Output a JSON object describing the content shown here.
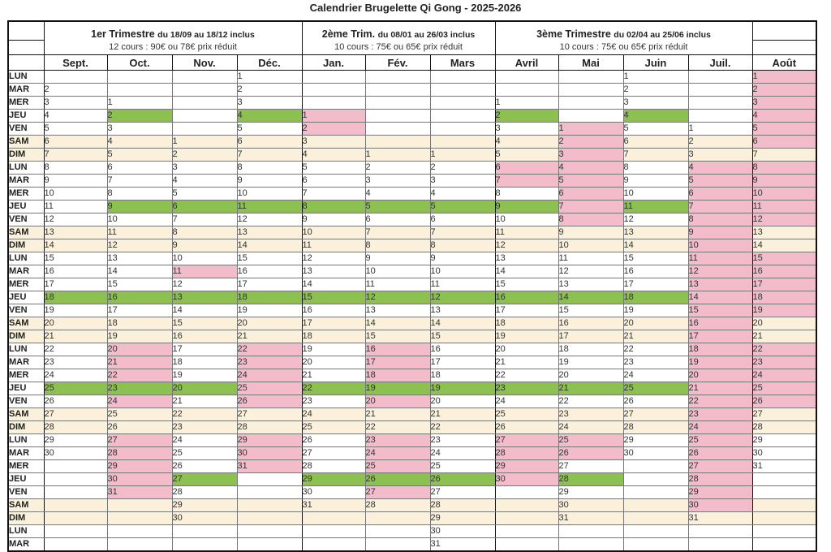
{
  "title": "Calendrier Brugelette Qi Gong - 2025-2026",
  "trimesters": [
    {
      "name": "1er Trimestre",
      "range": "du 18/09 au 18/12 inclus",
      "price": "12 cours : 90€ ou 78€ prix réduit"
    },
    {
      "name": "2ème Trim.",
      "range": "du 08/01 au 26/03 inclus",
      "price": "10 cours : 75€ ou 65€ prix réduit"
    },
    {
      "name": "3ème Trimestre",
      "range": "du 02/04 au 25/06 inclus",
      "price": "10 cours : 75€ ou 65€ prix réduit"
    }
  ],
  "months": [
    "Sept.",
    "Oct.",
    "Nov.",
    "Déc.",
    "Jan.",
    "Fév.",
    "Mars",
    "Avril",
    "Mai",
    "Juin",
    "Juil.",
    "Août"
  ],
  "rows": [
    {
      "day": "LUN",
      "cells": [
        "",
        "",
        "",
        "1",
        "",
        "",
        "",
        "",
        "",
        "1",
        "",
        "1"
      ]
    },
    {
      "day": "MAR",
      "cells": [
        "2",
        "",
        "",
        "2",
        "",
        "",
        "",
        "",
        "",
        "2",
        "",
        "2"
      ]
    },
    {
      "day": "MER",
      "cells": [
        "3",
        "1",
        "",
        "3",
        "",
        "",
        "",
        "1",
        "",
        "3",
        "",
        "3"
      ]
    },
    {
      "day": "JEU",
      "cells": [
        "4",
        "2",
        "",
        "4",
        "1",
        "",
        "",
        "2",
        "",
        "4",
        "",
        "4"
      ]
    },
    {
      "day": "VEN",
      "cells": [
        "5",
        "3",
        "",
        "5",
        "2",
        "",
        "",
        "3",
        "1",
        "5",
        "1",
        "5"
      ]
    },
    {
      "day": "SAM",
      "cells": [
        "6",
        "4",
        "1",
        "6",
        "3",
        "",
        "",
        "4",
        "2",
        "6",
        "2",
        "6"
      ]
    },
    {
      "day": "DIM",
      "cells": [
        "7",
        "5",
        "2",
        "7",
        "4",
        "1",
        "1",
        "5",
        "3",
        "7",
        "3",
        "7"
      ]
    },
    {
      "day": "LUN",
      "cells": [
        "8",
        "6",
        "3",
        "8",
        "5",
        "2",
        "2",
        "6",
        "4",
        "8",
        "4",
        "8"
      ]
    },
    {
      "day": "MAR",
      "cells": [
        "9",
        "7",
        "4",
        "9",
        "6",
        "3",
        "3",
        "7",
        "5",
        "9",
        "5",
        "9"
      ]
    },
    {
      "day": "MER",
      "cells": [
        "10",
        "8",
        "5",
        "10",
        "7",
        "4",
        "4",
        "8",
        "6",
        "10",
        "6",
        "10"
      ]
    },
    {
      "day": "JEU",
      "cells": [
        "11",
        "9",
        "6",
        "11",
        "8",
        "5",
        "5",
        "9",
        "7",
        "11",
        "7",
        "11"
      ]
    },
    {
      "day": "VEN",
      "cells": [
        "12",
        "10",
        "7",
        "12",
        "9",
        "6",
        "6",
        "10",
        "8",
        "12",
        "8",
        "12"
      ]
    },
    {
      "day": "SAM",
      "cells": [
        "13",
        "11",
        "8",
        "13",
        "10",
        "7",
        "7",
        "11",
        "9",
        "13",
        "9",
        "13"
      ]
    },
    {
      "day": "DIM",
      "cells": [
        "14",
        "12",
        "9",
        "14",
        "11",
        "8",
        "8",
        "12",
        "10",
        "14",
        "10",
        "14"
      ]
    },
    {
      "day": "LUN",
      "cells": [
        "15",
        "13",
        "10",
        "15",
        "12",
        "9",
        "9",
        "13",
        "11",
        "15",
        "11",
        "15"
      ]
    },
    {
      "day": "MAR",
      "cells": [
        "16",
        "14",
        "11",
        "16",
        "13",
        "10",
        "10",
        "14",
        "12",
        "16",
        "12",
        "16"
      ]
    },
    {
      "day": "MER",
      "cells": [
        "17",
        "15",
        "12",
        "17",
        "14",
        "11",
        "11",
        "15",
        "13",
        "17",
        "13",
        "17"
      ]
    },
    {
      "day": "JEU",
      "cells": [
        "18",
        "16",
        "13",
        "18",
        "15",
        "12",
        "12",
        "16",
        "14",
        "18",
        "14",
        "18"
      ]
    },
    {
      "day": "VEN",
      "cells": [
        "19",
        "17",
        "14",
        "19",
        "16",
        "13",
        "13",
        "17",
        "15",
        "19",
        "15",
        "19"
      ]
    },
    {
      "day": "SAM",
      "cells": [
        "20",
        "18",
        "15",
        "20",
        "17",
        "14",
        "14",
        "18",
        "16",
        "20",
        "16",
        "20"
      ]
    },
    {
      "day": "DIM",
      "cells": [
        "21",
        "19",
        "16",
        "21",
        "18",
        "15",
        "15",
        "19",
        "17",
        "21",
        "17",
        "21"
      ]
    },
    {
      "day": "LUN",
      "cells": [
        "22",
        "20",
        "17",
        "22",
        "19",
        "16",
        "16",
        "20",
        "18",
        "22",
        "18",
        "22"
      ]
    },
    {
      "day": "MAR",
      "cells": [
        "23",
        "21",
        "18",
        "23",
        "20",
        "17",
        "17",
        "21",
        "19",
        "23",
        "19",
        "23"
      ]
    },
    {
      "day": "MER",
      "cells": [
        "24",
        "22",
        "19",
        "24",
        "21",
        "18",
        "18",
        "22",
        "20",
        "24",
        "20",
        "24"
      ]
    },
    {
      "day": "JEU",
      "cells": [
        "25",
        "23",
        "20",
        "25",
        "22",
        "19",
        "19",
        "23",
        "21",
        "25",
        "21",
        "25"
      ]
    },
    {
      "day": "VEN",
      "cells": [
        "26",
        "24",
        "21",
        "26",
        "23",
        "20",
        "20",
        "24",
        "22",
        "26",
        "22",
        "26"
      ]
    },
    {
      "day": "SAM",
      "cells": [
        "27",
        "25",
        "22",
        "27",
        "24",
        "21",
        "21",
        "25",
        "23",
        "27",
        "23",
        "27"
      ]
    },
    {
      "day": "DIM",
      "cells": [
        "28",
        "26",
        "23",
        "28",
        "25",
        "22",
        "22",
        "26",
        "24",
        "28",
        "24",
        "28"
      ]
    },
    {
      "day": "LUN",
      "cells": [
        "29",
        "27",
        "24",
        "29",
        "26",
        "23",
        "23",
        "27",
        "25",
        "29",
        "25",
        "29"
      ]
    },
    {
      "day": "MAR",
      "cells": [
        "30",
        "28",
        "25",
        "30",
        "27",
        "24",
        "24",
        "28",
        "26",
        "30",
        "26",
        "30"
      ]
    },
    {
      "day": "MER",
      "cells": [
        "",
        "29",
        "26",
        "31",
        "28",
        "25",
        "25",
        "29",
        "27",
        "",
        "27",
        "31"
      ]
    },
    {
      "day": "JEU",
      "cells": [
        "",
        "30",
        "27",
        "",
        "29",
        "26",
        "26",
        "30",
        "28",
        "",
        "28",
        ""
      ]
    },
    {
      "day": "VEN",
      "cells": [
        "",
        "31",
        "28",
        "",
        "30",
        "27",
        "27",
        "",
        "29",
        "",
        "29",
        ""
      ]
    },
    {
      "day": "SAM",
      "cells": [
        "",
        "",
        "29",
        "",
        "31",
        "28",
        "28",
        "",
        "30",
        "",
        "30",
        ""
      ]
    },
    {
      "day": "DIM",
      "cells": [
        "",
        "",
        "30",
        "",
        "",
        "",
        "29",
        "",
        "31",
        "",
        "31",
        ""
      ]
    },
    {
      "day": "LUN",
      "cells": [
        "",
        "",
        "",
        "",
        "",
        "",
        "30",
        "",
        "",
        "",
        "",
        ""
      ]
    },
    {
      "day": "MAR",
      "cells": [
        "",
        "",
        "",
        "",
        "",
        "",
        "31",
        "",
        "",
        "",
        "",
        ""
      ]
    }
  ],
  "highlights": {
    "course_color": "#8cc152",
    "holiday_color": "#f2bccb",
    "weekend_color": "#fbf1da",
    "green": {
      "0": [
        17,
        24
      ],
      "1": [
        3,
        10,
        17,
        24
      ],
      "2": [
        10,
        17,
        24,
        31
      ],
      "3": [
        3,
        10,
        17
      ],
      "4": [
        10,
        17,
        24,
        31
      ],
      "5": [
        10,
        17,
        24,
        31
      ],
      "6": [
        10,
        17,
        24,
        31
      ],
      "7": [
        3,
        10,
        17,
        24
      ],
      "8": [
        17,
        24,
        31
      ],
      "9": [
        3,
        10,
        17,
        24
      ],
      "10": [],
      "11": []
    },
    "pink": {
      "0": [],
      "1": [
        21,
        22,
        23,
        24,
        25,
        28,
        29,
        30,
        31,
        32
      ],
      "2": [
        15
      ],
      "3": [
        21,
        22,
        23,
        24,
        25,
        28,
        29,
        30
      ],
      "4": [
        3,
        4
      ],
      "5": [
        21,
        22,
        23,
        24,
        25,
        28,
        29,
        30,
        31,
        32
      ],
      "6": [],
      "7": [
        7,
        8,
        28,
        29,
        30,
        31
      ],
      "8": [
        4,
        5,
        6,
        7,
        8,
        9,
        10,
        11,
        28,
        29
      ],
      "9": [],
      "10": [
        7,
        8,
        9,
        10,
        11,
        12,
        13,
        14,
        15,
        16,
        17,
        18,
        19,
        20,
        21,
        22,
        23,
        24,
        25,
        26,
        27,
        28,
        29,
        30,
        31,
        32,
        33
      ],
      "11": [
        0,
        1,
        2,
        3,
        4,
        5,
        7,
        8,
        9,
        10,
        11,
        14,
        15,
        16,
        17,
        18,
        21,
        22,
        23,
        24,
        25
      ]
    }
  }
}
